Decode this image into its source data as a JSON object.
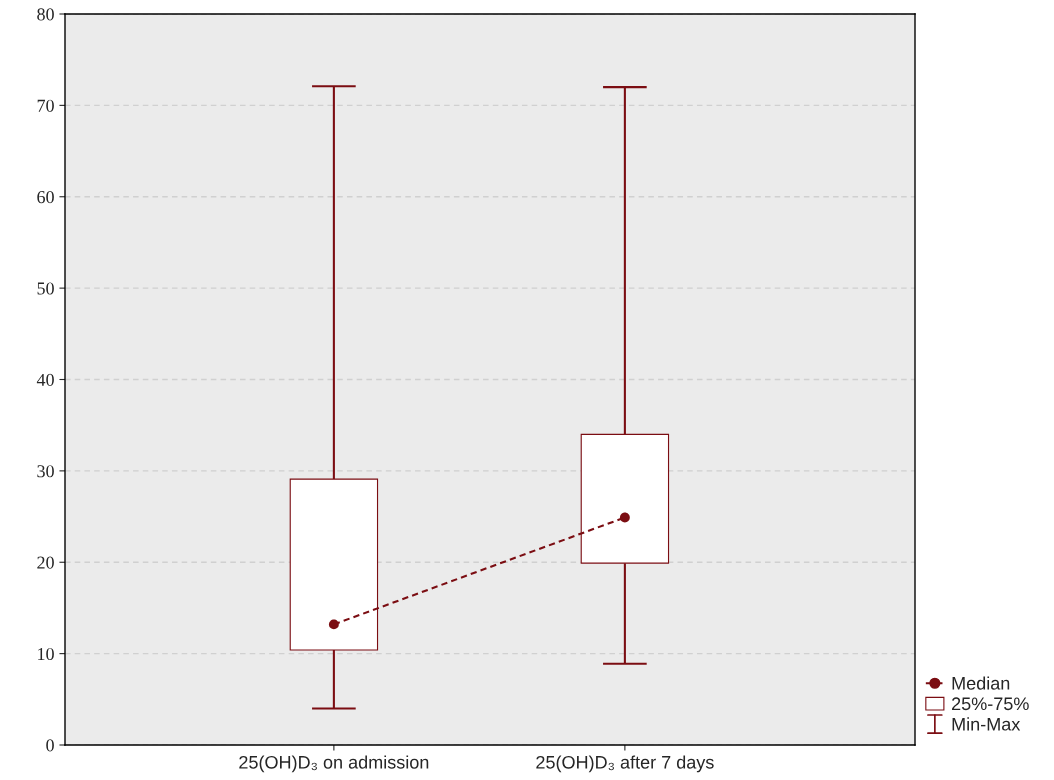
{
  "chart_data": {
    "type": "box",
    "categories": [
      "25(OH)D₃ on admission",
      "25(OH)D₃ after 7 days"
    ],
    "series": [
      {
        "type": "box",
        "name": "25%-75%",
        "color": "#7b0d12",
        "marker": "circle",
        "line_style": "dashed",
        "boxes": [
          {
            "low": 4,
            "q1": 10.4,
            "median": 13.2,
            "q3": 29.1,
            "high": 72.1
          },
          {
            "low": 8.9,
            "q1": 19.9,
            "median": 24.9,
            "q3": 34,
            "high": 72
          }
        ]
      }
    ],
    "annotations": [
      "Median",
      "Min-Max"
    ],
    "ylim": [
      0,
      80
    ],
    "yticks": [
      0,
      10,
      20,
      30,
      40,
      50,
      60,
      70,
      80
    ],
    "grid": "y",
    "legend": "bottom right"
  }
}
